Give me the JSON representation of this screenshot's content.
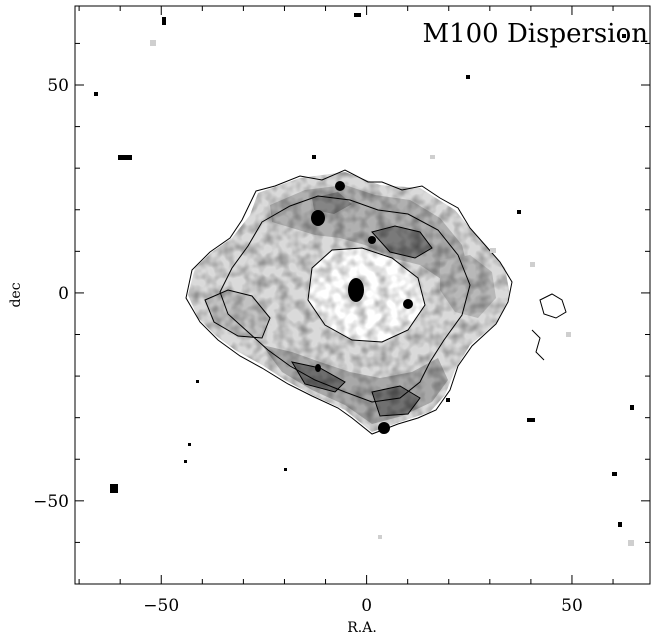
{
  "title": "M100 Dispersion",
  "axes": {
    "xlabel": "R.A.",
    "ylabel": "dec",
    "xlim": [
      -71,
      69
    ],
    "ylim": [
      -70,
      69
    ],
    "xticks": [
      -50,
      0,
      50
    ],
    "yticks": [
      -50,
      0,
      50
    ],
    "xtick_labels": [
      "−50",
      "0",
      "50"
    ],
    "ytick_labels": [
      "−50",
      "0",
      "50"
    ]
  },
  "image": {
    "kind": "grayscale velocity dispersion map with contours",
    "colors": {
      "background": "#ffffff",
      "light": "#d9d9d9",
      "mid": "#a8a8a8",
      "dark": "#6e6e6e",
      "contour": "#000000"
    }
  }
}
